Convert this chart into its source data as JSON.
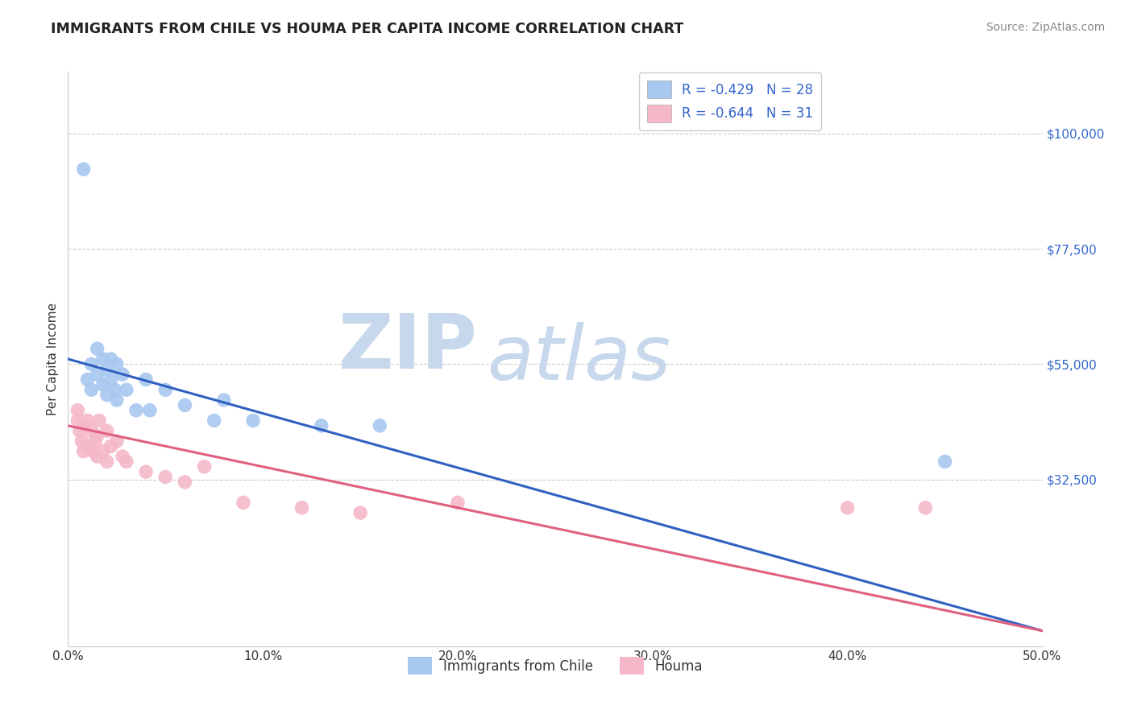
{
  "title": "IMMIGRANTS FROM CHILE VS HOUMA PER CAPITA INCOME CORRELATION CHART",
  "source": "Source: ZipAtlas.com",
  "ylabel": "Per Capita Income",
  "xlim": [
    0.0,
    0.5
  ],
  "ylim": [
    0,
    112000
  ],
  "yticks": [
    32500,
    55000,
    77500,
    100000
  ],
  "ytick_labels": [
    "$32,500",
    "$55,000",
    "$77,500",
    "$100,000"
  ],
  "xticks": [
    0.0,
    0.1,
    0.2,
    0.3,
    0.4,
    0.5
  ],
  "xtick_labels": [
    "0.0%",
    "10.0%",
    "20.0%",
    "30.0%",
    "40.0%",
    "50.0%"
  ],
  "legend_r1": "R = -0.429",
  "legend_n1": "N = 28",
  "legend_r2": "R = -0.644",
  "legend_n2": "N = 31",
  "legend_label1": "Immigrants from Chile",
  "legend_label2": "Houma",
  "blue_color": "#A8C8F0",
  "pink_color": "#F5B8C8",
  "line_blue": "#3060C0",
  "line_pink": "#E06080",
  "legend_text_color": "#3366CC",
  "watermark_zip": "ZIP",
  "watermark_atlas": "atlas",
  "blue_scatter_x": [
    0.008,
    0.01,
    0.012,
    0.012,
    0.015,
    0.015,
    0.018,
    0.018,
    0.02,
    0.02,
    0.022,
    0.022,
    0.024,
    0.025,
    0.025,
    0.028,
    0.03,
    0.035,
    0.04,
    0.042,
    0.05,
    0.06,
    0.075,
    0.08,
    0.095,
    0.13,
    0.16,
    0.45
  ],
  "blue_scatter_y": [
    93000,
    52000,
    50000,
    55000,
    53000,
    58000,
    56000,
    51000,
    54000,
    49000,
    56000,
    52000,
    50000,
    55000,
    48000,
    53000,
    50000,
    46000,
    52000,
    46000,
    50000,
    47000,
    44000,
    48000,
    44000,
    43000,
    43000,
    36000
  ],
  "pink_scatter_x": [
    0.005,
    0.005,
    0.006,
    0.007,
    0.008,
    0.008,
    0.01,
    0.01,
    0.012,
    0.013,
    0.014,
    0.015,
    0.015,
    0.016,
    0.018,
    0.02,
    0.02,
    0.022,
    0.025,
    0.028,
    0.03,
    0.04,
    0.05,
    0.06,
    0.07,
    0.09,
    0.12,
    0.15,
    0.2,
    0.4,
    0.44
  ],
  "pink_scatter_y": [
    46000,
    44000,
    42000,
    40000,
    43000,
    38000,
    44000,
    39000,
    42000,
    38000,
    40000,
    41000,
    37000,
    44000,
    38000,
    42000,
    36000,
    39000,
    40000,
    37000,
    36000,
    34000,
    33000,
    32000,
    35000,
    28000,
    27000,
    26000,
    28000,
    27000,
    27000
  ],
  "blue_line_x0": 0.0,
  "blue_line_x1": 0.5,
  "blue_line_y0": 56000,
  "blue_line_y1": 3000,
  "pink_line_x0": 0.0,
  "pink_line_x1": 0.5,
  "pink_line_y0": 43000,
  "pink_line_y1": 3000
}
